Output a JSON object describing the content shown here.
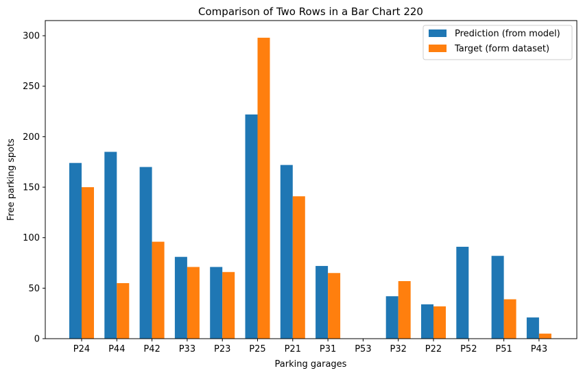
{
  "chart_data": {
    "type": "bar",
    "title": "Comparison of Two Rows in a Bar Chart 220",
    "xlabel": "Parking garages",
    "ylabel": "Free parking spots",
    "categories": [
      "P24",
      "P44",
      "P42",
      "P33",
      "P23",
      "P25",
      "P21",
      "P31",
      "P53",
      "P32",
      "P22",
      "P52",
      "P51",
      "P43"
    ],
    "series": [
      {
        "name": "Prediction (from model)",
        "color": "#1f77b4",
        "values": [
          174,
          185,
          170,
          81,
          71,
          222,
          172,
          72,
          0,
          42,
          34,
          91,
          82,
          21
        ]
      },
      {
        "name": "Target (form dataset)",
        "color": "#ff7f0e",
        "values": [
          150,
          55,
          96,
          71,
          66,
          298,
          141,
          65,
          0,
          57,
          32,
          0,
          39,
          5
        ]
      }
    ],
    "ylim": [
      0,
      315
    ],
    "yticks": [
      0,
      50,
      100,
      150,
      200,
      250,
      300
    ],
    "grid": false,
    "legend_position": "top-right"
  }
}
